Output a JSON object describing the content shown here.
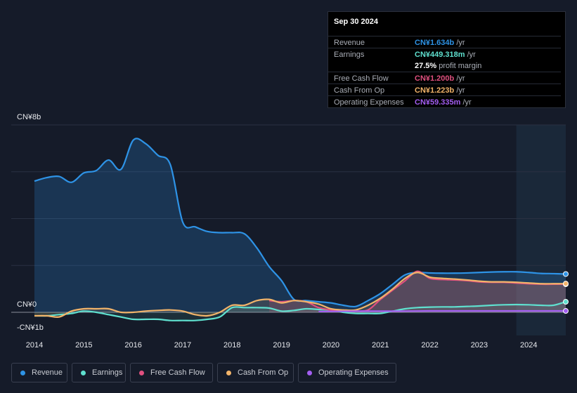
{
  "tooltip": {
    "date": "Sep 30 2024",
    "rows": [
      {
        "label": "Revenue",
        "value": "CN¥1.634b",
        "unit": " /yr",
        "color": "#2e93e6"
      },
      {
        "label": "Earnings",
        "value": "CN¥449.318m",
        "unit": " /yr",
        "color": "#5fe0cf"
      },
      {
        "label": "",
        "value": "27.5%",
        "unit": " profit margin",
        "color": "#ffffff"
      },
      {
        "label": "Free Cash Flow",
        "value": "CN¥1.200b",
        "unit": " /yr",
        "color": "#e0507f"
      },
      {
        "label": "Cash From Op",
        "value": "CN¥1.223b",
        "unit": " /yr",
        "color": "#f2b46a"
      },
      {
        "label": "Operating Expenses",
        "value": "CN¥59.335m",
        "unit": " /yr",
        "color": "#a35ef2"
      }
    ]
  },
  "legend": [
    {
      "label": "Revenue",
      "color": "#2e93e6"
    },
    {
      "label": "Earnings",
      "color": "#5fe0cf"
    },
    {
      "label": "Free Cash Flow",
      "color": "#e0507f"
    },
    {
      "label": "Cash From Op",
      "color": "#f2b46a"
    },
    {
      "label": "Operating Expenses",
      "color": "#a35ef2"
    }
  ],
  "chart_data": {
    "type": "area",
    "y_tick_labels": [
      "CN¥8b",
      "CN¥0",
      "-CN¥1b"
    ],
    "ylim": [
      -1,
      8
    ],
    "xlim": [
      2014,
      2024.75
    ],
    "x_tick_labels": [
      "2014",
      "2015",
      "2016",
      "2017",
      "2018",
      "2019",
      "2020",
      "2021",
      "2022",
      "2023",
      "2024"
    ],
    "x_ticks": [
      2014,
      2015,
      2016,
      2017,
      2018,
      2019,
      2020,
      2021,
      2022,
      2023,
      2024
    ],
    "forecast_start": 2023.75,
    "series": [
      {
        "name": "Revenue",
        "color": "#2e93e6",
        "fill": true,
        "x": [
          2014,
          2014.25,
          2014.5,
          2014.75,
          2015,
          2015.25,
          2015.5,
          2015.75,
          2016,
          2016.25,
          2016.5,
          2016.75,
          2017,
          2017.25,
          2017.5,
          2017.75,
          2018,
          2018.25,
          2018.5,
          2018.75,
          2019,
          2019.25,
          2019.5,
          2019.75,
          2020,
          2020.25,
          2020.5,
          2020.75,
          2021,
          2021.25,
          2021.5,
          2021.75,
          2022,
          2022.25,
          2022.5,
          2022.75,
          2023,
          2023.25,
          2023.5,
          2023.75,
          2024,
          2024.25,
          2024.5,
          2024.75
        ],
        "values": [
          5.6,
          5.75,
          5.8,
          5.55,
          5.95,
          6.05,
          6.5,
          6.1,
          7.35,
          7.2,
          6.7,
          6.3,
          3.85,
          3.65,
          3.45,
          3.4,
          3.4,
          3.35,
          2.75,
          1.95,
          1.35,
          0.55,
          0.5,
          0.45,
          0.4,
          0.3,
          0.25,
          0.5,
          0.8,
          1.2,
          1.6,
          1.7,
          1.68,
          1.67,
          1.67,
          1.68,
          1.7,
          1.72,
          1.73,
          1.73,
          1.7,
          1.66,
          1.65,
          1.634
        ]
      },
      {
        "name": "Earnings",
        "color": "#5fe0cf",
        "fill": true,
        "x": [
          2014,
          2014.25,
          2014.5,
          2014.75,
          2015,
          2015.25,
          2015.5,
          2015.75,
          2016,
          2016.25,
          2016.5,
          2016.75,
          2017,
          2017.25,
          2017.5,
          2017.75,
          2018,
          2018.25,
          2018.5,
          2018.75,
          2019,
          2019.25,
          2019.5,
          2019.75,
          2020,
          2020.25,
          2020.5,
          2020.75,
          2021,
          2021.25,
          2021.5,
          2021.75,
          2022,
          2022.25,
          2022.5,
          2022.75,
          2023,
          2023.25,
          2023.5,
          2023.75,
          2024,
          2024.25,
          2024.5,
          2024.75
        ],
        "values": [
          -0.15,
          -0.15,
          -0.1,
          -0.05,
          0.05,
          0.0,
          -0.1,
          -0.2,
          -0.3,
          -0.3,
          -0.3,
          -0.35,
          -0.35,
          -0.35,
          -0.3,
          -0.2,
          0.2,
          0.2,
          0.2,
          0.18,
          0.05,
          0.08,
          0.15,
          0.12,
          0.1,
          0.0,
          -0.05,
          -0.05,
          -0.05,
          0.05,
          0.15,
          0.2,
          0.22,
          0.23,
          0.23,
          0.25,
          0.27,
          0.3,
          0.32,
          0.33,
          0.32,
          0.3,
          0.3,
          0.449
        ]
      },
      {
        "name": "Free Cash Flow",
        "color": "#e0507f",
        "fill": true,
        "x": [
          2018.75,
          2019,
          2019.25,
          2019.5,
          2019.75,
          2020,
          2020.25,
          2020.5,
          2020.75,
          2021,
          2021.25,
          2021.5,
          2021.75,
          2022,
          2022.25,
          2022.5,
          2022.75,
          2023,
          2023.25,
          2023.5,
          2023.75,
          2024,
          2024.25,
          2024.5,
          2024.75
        ],
        "values": [
          0.5,
          0.45,
          0.5,
          0.45,
          0.2,
          0.1,
          0.05,
          0.05,
          0.1,
          0.55,
          0.95,
          1.35,
          1.75,
          1.45,
          1.4,
          1.38,
          1.35,
          1.3,
          1.28,
          1.28,
          1.25,
          1.22,
          1.2,
          1.2,
          1.2
        ]
      },
      {
        "name": "Cash From Op",
        "color": "#f2b46a",
        "fill": true,
        "x": [
          2014,
          2014.25,
          2014.5,
          2014.75,
          2015,
          2015.25,
          2015.5,
          2015.75,
          2016,
          2016.25,
          2016.5,
          2016.75,
          2017,
          2017.25,
          2017.5,
          2017.75,
          2018,
          2018.25,
          2018.5,
          2018.75,
          2019,
          2019.25,
          2019.5,
          2019.75,
          2020,
          2020.25,
          2020.5,
          2020.75,
          2021,
          2021.25,
          2021.5,
          2021.75,
          2022,
          2022.25,
          2022.5,
          2022.75,
          2023,
          2023.25,
          2023.5,
          2023.75,
          2024,
          2024.25,
          2024.5,
          2024.75
        ],
        "values": [
          -0.15,
          -0.15,
          -0.2,
          0.05,
          0.15,
          0.15,
          0.15,
          0.0,
          0.0,
          0.05,
          0.08,
          0.1,
          0.05,
          -0.1,
          -0.15,
          0.0,
          0.3,
          0.3,
          0.5,
          0.55,
          0.4,
          0.5,
          0.45,
          0.35,
          0.15,
          0.1,
          0.1,
          0.3,
          0.6,
          1.0,
          1.45,
          1.7,
          1.5,
          1.45,
          1.42,
          1.38,
          1.33,
          1.3,
          1.3,
          1.28,
          1.25,
          1.22,
          1.22,
          1.223
        ]
      },
      {
        "name": "Operating Expenses",
        "color": "#a35ef2",
        "fill": false,
        "x": [
          2019.75,
          2020,
          2020.5,
          2021,
          2021.5,
          2022,
          2022.5,
          2023,
          2023.5,
          2024,
          2024.5,
          2024.75
        ],
        "values": [
          0.03,
          0.04,
          0.05,
          0.05,
          0.05,
          0.06,
          0.06,
          0.06,
          0.06,
          0.06,
          0.06,
          0.059
        ]
      }
    ]
  }
}
